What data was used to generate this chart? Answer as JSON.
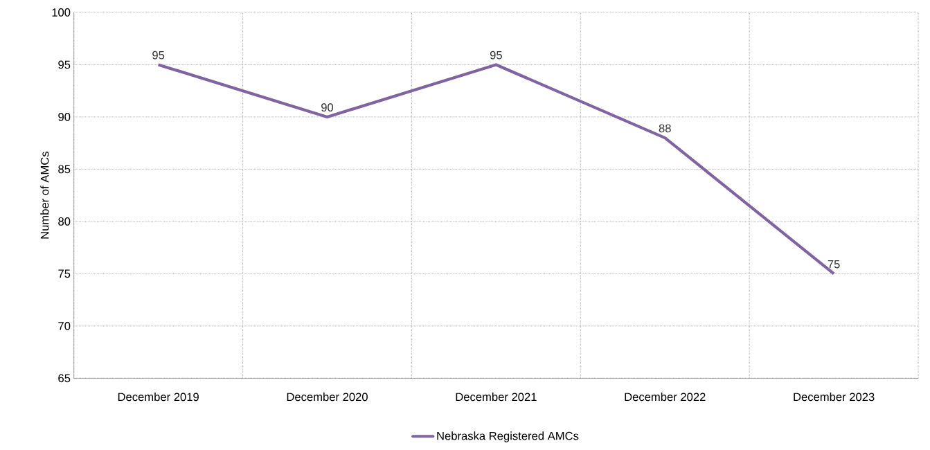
{
  "chart_data": {
    "type": "line",
    "ylabel": "Number of AMCs",
    "categories": [
      "December 2019",
      "December 2020",
      "December 2021",
      "December 2022",
      "December 2023"
    ],
    "series": [
      {
        "name": "Nebraska Registered AMCs",
        "color": "#8064a2",
        "values": [
          95,
          90,
          95,
          88,
          75
        ]
      }
    ],
    "ylim": [
      65,
      100
    ],
    "yticks": [
      65,
      70,
      75,
      80,
      85,
      90,
      95,
      100
    ],
    "grid": true,
    "legend": "bottom",
    "data_labels": true,
    "marker": "none",
    "line_style": "solid"
  }
}
